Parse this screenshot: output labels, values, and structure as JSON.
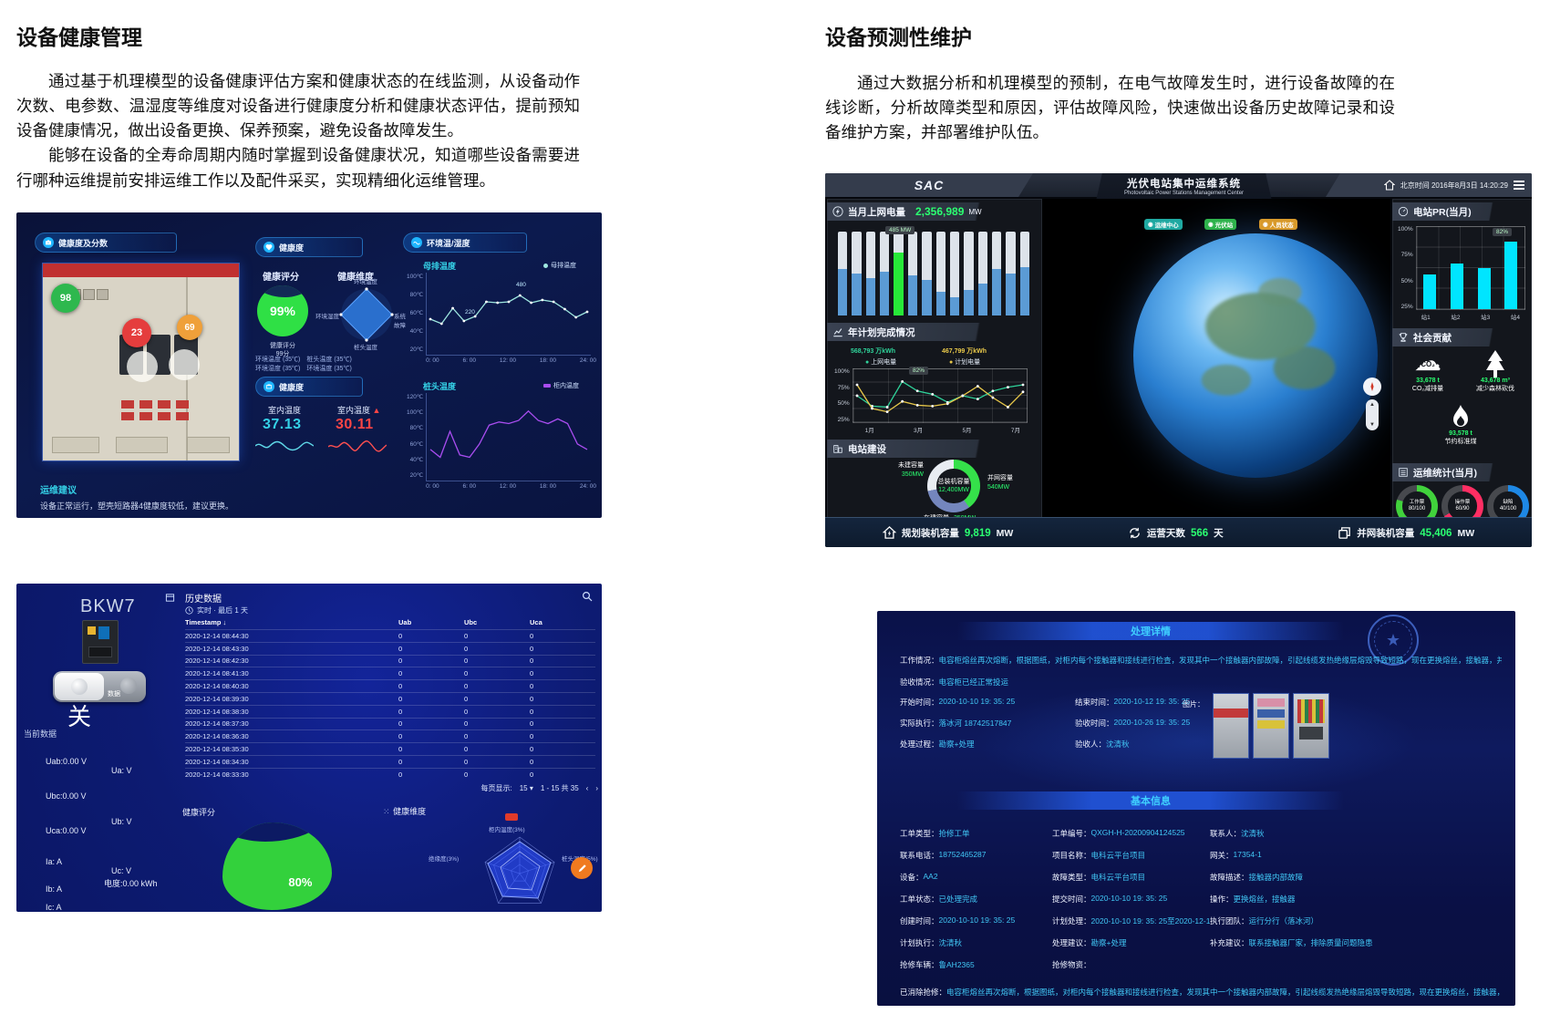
{
  "doc": {
    "left": {
      "heading": "设备健康管理",
      "p1": "通过基于机理模型的设备健康评估方案和健康状态的在线监测，从设备动作次数、电参数、温湿度等维度对设备进行健康度分析和健康状态评估，提前预知设备健康情况，做出设备更换、保养预案，避免设备故障发生。",
      "p2": "能够在设备的全寿命周期内随时掌握到设备健康状况，知道哪些设备需要进行哪种运维提前安排运维工作以及配件采买，实现精细化运维管理。"
    },
    "right": {
      "heading": "设备预测性维护",
      "p1": "通过大数据分析和机理模型的预制，在电气故障发生时，进行设备故障的在线诊断，分析故障类型和原因，评估故障风险，快速做出设备历史故障记录和设备维护方案，并部署维护队伍。"
    }
  },
  "dash1": {
    "photo_panel": {
      "title": "健康度及分数",
      "badges": [
        {
          "value": "98",
          "color": "#2eb84e"
        },
        {
          "value": "23",
          "color": "#e53d3d"
        },
        {
          "value": "69",
          "color": "#efa03a"
        }
      ]
    },
    "health_panel": {
      "title": "健康度",
      "score_title": "健康评分",
      "score": "99%",
      "score_cap1": "健康评分",
      "score_cap2": "99分",
      "dim_title": "健康维度",
      "dim_top": "环境温度",
      "dim_right": "系统故障",
      "dim_bottom": "桩头温度",
      "dim_left": "环境湿度",
      "env_row1": "环境温度 (35℃)　桩头温度 (35℃)",
      "env_row2": "环境湿度 (35℃)　环境温度 (35℃)"
    },
    "temp_panel": {
      "title": "健康度",
      "indoor_label": "室内温度",
      "indoor_value": "37.13",
      "outdoor_label": "室内温度",
      "outdoor_value": "30.11"
    },
    "env_panel": {
      "title": "环境温/湿度",
      "chart1": {
        "title": "母排温度",
        "legend": "母排温度",
        "ylabels": [
          "100℃",
          "80℃",
          "60℃",
          "40℃",
          "20℃"
        ],
        "xlabels": [
          "0: 00",
          "6: 00",
          "12: 00",
          "18: 00",
          "24: 00"
        ],
        "point1": "480",
        "point2": "220"
      },
      "chart2": {
        "title": "桩头温度",
        "legend": "柜内温度",
        "ylabels": [
          "120℃",
          "100℃",
          "80℃",
          "60℃",
          "40℃",
          "20℃"
        ],
        "xlabels": [
          "0: 00",
          "6: 00",
          "12: 00",
          "18: 00",
          "24: 00"
        ]
      }
    },
    "advice_title": "运维建议",
    "advice_text": "设备正常运行，塑壳短路器4健康度较低，建议更换。",
    "charts": {
      "busbar": {
        "min": 20,
        "max": 100,
        "series": [
          {
            "color": "#9fe8e0",
            "dots": true,
            "values": [
              55,
              50,
              67,
              53,
              58,
              74,
              73,
              74,
              81,
              73,
              76,
              74,
              66,
              57,
              63
            ]
          }
        ]
      },
      "head": {
        "min": 20,
        "max": 120,
        "series": [
          {
            "color": "#a94df0",
            "dots": false,
            "values": [
              55,
              45,
              78,
              48,
              45,
              62,
              86,
              90,
              88,
              92,
              104,
              92,
              88,
              94,
              88,
              62,
              55
            ]
          }
        ]
      }
    }
  },
  "dash2": {
    "device_name": "BKW7",
    "history_title": "历史数据",
    "history_range": "实时 · 最后 1 天",
    "switch_label": "数据",
    "switch_state": "关",
    "current_title": "当前数据",
    "r_uab": "Uab:0.00 V",
    "r_ua": "Ua: V",
    "r_ubc": "Ubc:0.00 V",
    "r_ub": "Ub: V",
    "r_uca": "Uca:0.00 V",
    "r_ia": "Ia: A",
    "r_uc": "Uc: V",
    "r_ib": "Ib: A",
    "r_kwh": "电度:0.00 kWh",
    "r_ic": "Ic: A",
    "table": {
      "head": [
        [
          "Timestamp ↓",
          "Uab",
          "Ubc",
          "Uca"
        ]
      ],
      "rows": [
        [
          "2020-12-14 08:44:30",
          "0",
          "0",
          "0"
        ],
        [
          "2020-12-14 08:43:30",
          "0",
          "0",
          "0"
        ],
        [
          "2020-12-14 08:42:30",
          "0",
          "0",
          "0"
        ],
        [
          "2020-12-14 08:41:30",
          "0",
          "0",
          "0"
        ],
        [
          "2020-12-14 08:40:30",
          "0",
          "0",
          "0"
        ],
        [
          "2020-12-14 08:39:30",
          "0",
          "0",
          "0"
        ],
        [
          "2020-12-14 08:38:30",
          "0",
          "0",
          "0"
        ],
        [
          "2020-12-14 08:37:30",
          "0",
          "0",
          "0"
        ],
        [
          "2020-12-14 08:36:30",
          "0",
          "0",
          "0"
        ],
        [
          "2020-12-14 08:35:30",
          "0",
          "0",
          "0"
        ],
        [
          "2020-12-14 08:34:30",
          "0",
          "0",
          "0"
        ],
        [
          "2020-12-14 08:33:30",
          "0",
          "0",
          "0"
        ]
      ]
    },
    "page_label": "每页显示:",
    "page_size": "15",
    "page_info": "1 - 15 共 35",
    "prev_arrow": "‹",
    "next_arrow": "›",
    "score_title": "健康评分",
    "score": "80%",
    "radar_title": "健康维度",
    "radar_top": "柜内温度(3%)",
    "radar_right": "桩头温度(5%)",
    "radar_left": "绝缘度(3%)"
  },
  "dash3": {
    "topbar": {
      "logo": "SAC",
      "title": "光伏电站集中运维系统",
      "subtitle": "Photovoltaic Power Stations Management Center",
      "time": "北京时间 2016年8月3日 14:20:29"
    },
    "energy": {
      "title": "当月上网电量",
      "value": "2,356,989",
      "unit": "MW",
      "tooltip": "485 MW",
      "hi": 4,
      "bars": [
        55,
        50,
        45,
        52,
        75,
        48,
        42,
        28,
        22,
        30,
        38,
        55,
        50,
        58
      ]
    },
    "plan": {
      "title": "年计划完成情况",
      "value1": "568,793 万kWh",
      "value2": "467,799 万kWh",
      "legend1": "上网电量",
      "legend2": "计划电量",
      "tooltip": "82%",
      "ylabels": [
        "100%",
        "75%",
        "50%",
        "25%"
      ],
      "xlabels": [
        "1月",
        "3月",
        "5月",
        "7月"
      ],
      "chart": {
        "min": 0,
        "max": 100,
        "series": [
          {
            "color": "#2fd39a",
            "dots": true,
            "values": [
              52,
              30,
              28,
              82,
              62,
              55,
              38,
              52,
              45,
              62,
              70,
              75
            ]
          },
          {
            "color": "#e8c84a",
            "dots": true,
            "values": [
              75,
              25,
              18,
              40,
              32,
              30,
              35,
              52,
              72,
              48,
              28,
              60
            ]
          }
        ]
      }
    },
    "build": {
      "title": "电站建设",
      "center_label": "总装机容量",
      "center_value": "12,400MW",
      "left_label": "未建容量",
      "left_value": "350MW",
      "right_label": "并网容量",
      "right_value": "540MW",
      "bottom_label": "在建容量",
      "bottom_value": "350MW",
      "donut": [
        [
          "#35e04a",
          40
        ],
        [
          "#7486bd",
          32
        ],
        [
          "#e8ecf2",
          28
        ]
      ]
    },
    "map": {
      "buttons": [
        "运维中心",
        "光伏站",
        "人员状态"
      ]
    },
    "pr": {
      "title": "电站PR(当月)",
      "ylabels": [
        "100%",
        "75%",
        "50%",
        "25%"
      ],
      "xlabels": [
        "站1",
        "站2",
        "站3",
        "站4"
      ],
      "values": [
        42,
        56,
        50,
        82
      ],
      "tooltip": "82%"
    },
    "social": {
      "title": "社会贡献",
      "co2_value": "33,678 t",
      "co2_label": "CO₂减排量",
      "tree_value": "43,678 m³",
      "tree_label": "减少森林砍伐",
      "coal_value": "93,578 t",
      "coal_label": "节约标准煤"
    },
    "stats": {
      "title": "运维统计(当月)",
      "rings": [
        {
          "label": "工作票",
          "value": "80/100",
          "pct": 80,
          "color": "#41d23c"
        },
        {
          "label": "操作票",
          "value": "60/90",
          "pct": 67,
          "color": "#ff2e63"
        },
        {
          "label": "缺陷",
          "value": "40/100",
          "pct": 40,
          "color": "#1e88e5"
        }
      ]
    },
    "footer": {
      "item1_label": "规划装机容量",
      "item1_value": "9,819",
      "item1_unit": "MW",
      "item2_label": "运营天数",
      "item2_value": "566",
      "item2_unit": "天",
      "item3_label": "并网装机容量",
      "item3_value": "45,406",
      "item3_unit": "MW"
    }
  },
  "dash4": {
    "title": "处理详情",
    "work_label": "工作情况：",
    "work_text": "电容柜熔丝再次熔断，根据图纸，对柜内每个接触器和接线进行检查，发现其中一个接触器内部故障，引起线缆发热绝缘层熔毁导致短路，现在更换熔丝，接触器，并重新接线",
    "accept_label": "验收情况：",
    "accept_text": "电容柜已经正常投运",
    "grid_a": [
      [
        [
          "开始时间：",
          "2020-10-10 19: 35: 25"
        ],
        [
          "结束时间：",
          "2020-10-12 19: 35: 25"
        ]
      ],
      [
        [
          "实际执行：",
          "落冰河 18742517847"
        ],
        [
          "验收时间：",
          "2020-10-26 19: 35: 25"
        ]
      ],
      [
        [
          "处理过程：",
          "勘察+处理"
        ],
        [
          "验收人：",
          "沈清秋"
        ]
      ]
    ],
    "photos_label": "图片：",
    "info_title": "基本信息",
    "grid_b": [
      [
        [
          "工单类型：",
          "抢修工单"
        ],
        [
          "工单编号：",
          "QXGH-H-20200904124525"
        ],
        [
          "联系人：",
          "沈清秋"
        ]
      ],
      [
        [
          "联系电话：",
          "18752465287"
        ],
        [
          "项目名称：",
          "电科云平台项目"
        ],
        [
          "网关：",
          "17354-1"
        ]
      ],
      [
        [
          "设备：",
          "AA2"
        ],
        [
          "故障类型：",
          "电科云平台项目"
        ],
        [
          "故障描述：",
          "接触器内部故障"
        ]
      ],
      [
        [
          "工单状态：",
          "已处理完成"
        ],
        [
          "提交时间：",
          "2020-10-10 19: 35: 25"
        ],
        [
          "操作：",
          "更换熔丝，接触器"
        ]
      ],
      [
        [
          "创建时间：",
          "2020-10-10 19: 35: 25"
        ],
        [
          "计划处理：",
          "2020-10-10 19: 35: 25至2020-12-10 19: 35: 25"
        ],
        [
          "执行团队：",
          "运行分行（落冰河）"
        ]
      ],
      [
        [
          "计划执行：",
          "沈清秋"
        ],
        [
          "处理建议：",
          "勘察+处理"
        ],
        [
          "补充建议：",
          "联系接触器厂家，排除质量问题隐患"
        ]
      ],
      [
        [
          "抢修车辆：",
          "鲁AH2365"
        ],
        [
          "抢修物资：",
          ""
        ]
      ]
    ],
    "footer_label": "已消除抢修：",
    "footer_text": "电容柜熔丝再次熔断，根据图纸，对柜内每个接触器和接线进行检查，发现其中一个接触器内部故障，引起线缆发热绝缘层熔毁导致短路，现在更换熔丝，接触器，并重新接线"
  }
}
